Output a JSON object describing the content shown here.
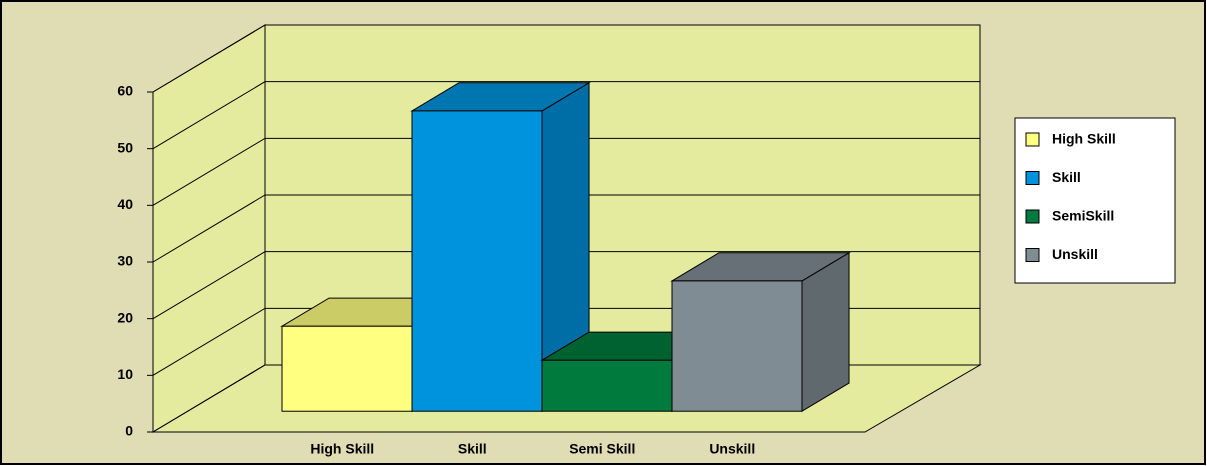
{
  "chart_data": {
    "type": "bar3d",
    "categories": [
      "High Skill",
      "Skill",
      "Semi Skill",
      "Unskill"
    ],
    "series": [
      {
        "name": "High Skill",
        "color": "#ffff80",
        "values": [
          15,
          null,
          null,
          null
        ]
      },
      {
        "name": "Skill",
        "color": "#0093dd",
        "values": [
          null,
          53,
          null,
          null
        ]
      },
      {
        "name": "SemiSkill",
        "color": "#007a3d",
        "values": [
          null,
          null,
          9,
          null
        ]
      },
      {
        "name": "Unskill",
        "color": "#7f8c93",
        "values": [
          null,
          null,
          null,
          23
        ]
      }
    ],
    "ylim": [
      0,
      60
    ],
    "yticks": [
      0,
      10,
      20,
      30,
      40,
      50,
      60
    ],
    "grid": true,
    "legend": "right"
  }
}
